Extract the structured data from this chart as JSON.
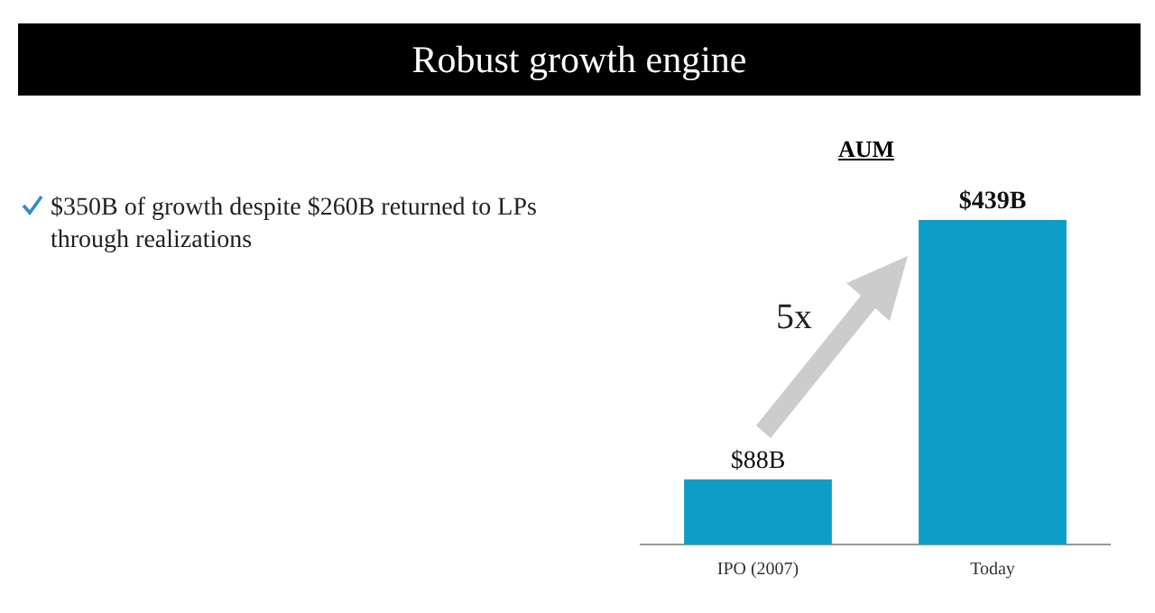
{
  "chart_data": {
    "type": "bar",
    "title": "Robust growth engine",
    "subtitle": "AUM",
    "categories": [
      "IPO (2007)",
      "Today"
    ],
    "values": [
      88,
      439
    ],
    "value_labels": [
      "$88B",
      "$439B"
    ],
    "color": "#0e9dc6",
    "grid": false,
    "tick_labels": "x",
    "annotations": [
      "$350B of growth despite $260B returned to LPs through realizations",
      "5x"
    ]
  }
}
